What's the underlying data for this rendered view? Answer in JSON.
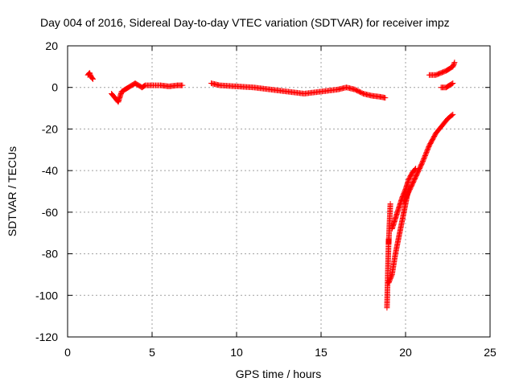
{
  "chart_data": {
    "type": "scatter",
    "title": "Day 004 of 2016, Sidereal Day-to-day VTEC variation (SDTVAR) for receiver impz",
    "xlabel": "GPS time / hours",
    "ylabel": "SDTVAR / TECUs",
    "xlim": [
      0,
      25
    ],
    "ylim": [
      -120,
      20
    ],
    "xticks": [
      0,
      5,
      10,
      15,
      20,
      25
    ],
    "yticks": [
      -120,
      -100,
      -80,
      -60,
      -40,
      -20,
      0,
      20
    ],
    "grid": true,
    "marker": "+",
    "marker_color": "#ff0000",
    "segments": [
      {
        "x": [
          1.2,
          1.3,
          1.35,
          1.4,
          1.5
        ],
        "y": [
          6,
          7,
          6,
          5,
          4
        ]
      },
      {
        "x": [
          2.6,
          2.8,
          3.0,
          3.2,
          3.4,
          3.6,
          3.8,
          4.0,
          4.2,
          4.4,
          4.6,
          5.0,
          5.5,
          6.0,
          6.5,
          6.8
        ],
        "y": [
          -3,
          -5,
          -7,
          -2,
          -1,
          0,
          1,
          2,
          1,
          0,
          1,
          1,
          1,
          0.5,
          1,
          1
        ]
      },
      {
        "x": [
          8.5,
          9.0,
          10.0,
          11.0,
          12.0,
          13.0,
          14.0,
          15.0,
          16.0,
          16.5,
          17.0,
          17.5,
          18.0,
          18.5,
          18.8
        ],
        "y": [
          2,
          1,
          0.5,
          0,
          -1,
          -2,
          -3,
          -2,
          -1,
          0,
          -1,
          -3,
          -4,
          -4.5,
          -5
        ]
      },
      {
        "x": [
          18.9,
          19.0,
          19.0,
          19.1
        ],
        "y": [
          -106,
          -73,
          -75,
          -56
        ]
      },
      {
        "x": [
          19.0,
          19.2,
          19.4,
          19.6,
          19.8,
          20.0,
          20.2
        ],
        "y": [
          -94,
          -90,
          -80,
          -72,
          -64,
          -56,
          -48
        ]
      },
      {
        "x": [
          19.2,
          19.4,
          19.6,
          19.8,
          20.0,
          20.2,
          20.4,
          20.6
        ],
        "y": [
          -68,
          -63,
          -58,
          -53,
          -49,
          -44,
          -41,
          -39
        ]
      },
      {
        "x": [
          19.9,
          20.2,
          20.6,
          21.0,
          21.4,
          21.8,
          22.2,
          22.5,
          22.8
        ],
        "y": [
          -55,
          -50,
          -43,
          -36,
          -28,
          -22,
          -18,
          -15,
          -13
        ]
      },
      {
        "x": [
          21.4,
          21.8,
          22.1,
          22.4,
          22.6,
          22.8,
          22.9
        ],
        "y": [
          6,
          6,
          7,
          8,
          9,
          10,
          12
        ]
      },
      {
        "x": [
          22.1,
          22.4,
          22.6,
          22.8
        ],
        "y": [
          0,
          0,
          1,
          2
        ]
      }
    ]
  }
}
